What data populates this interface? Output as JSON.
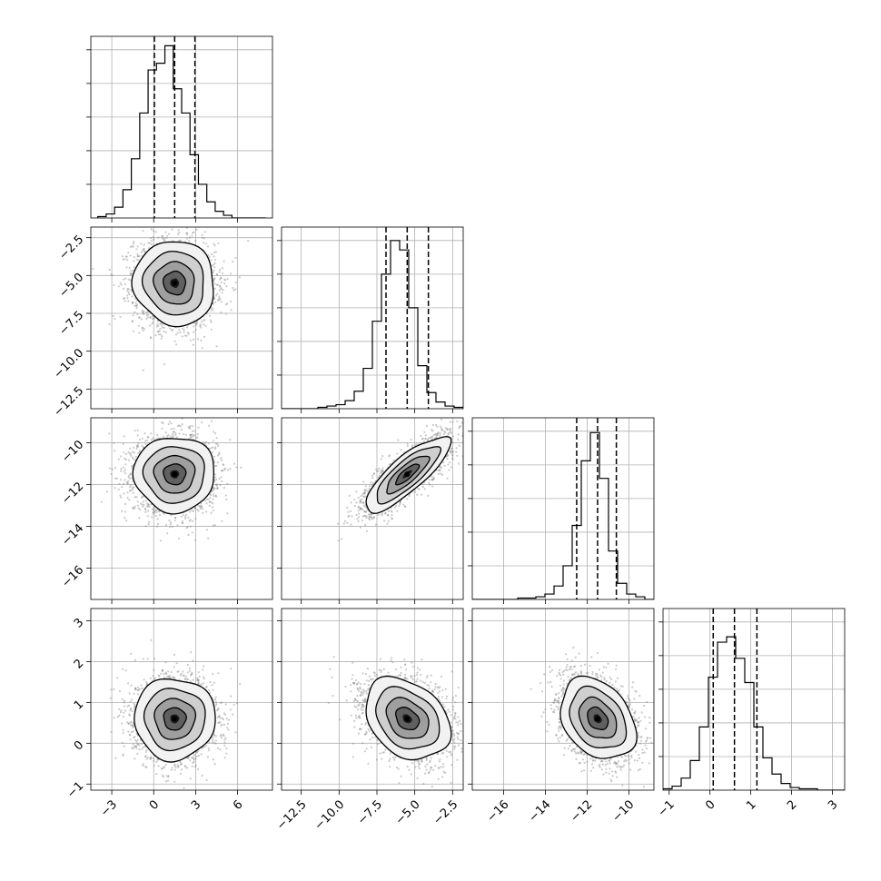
{
  "chart_data": {
    "type": "corner",
    "n_params": 4,
    "grid": true,
    "params": [
      {
        "range": [
          -4.5,
          8.5
        ],
        "ticks": [
          -3,
          0,
          3,
          6
        ],
        "tick_labels": [
          "−3",
          "0",
          "3",
          "6"
        ],
        "mean": 1.5,
        "sd": 1.45,
        "quantiles": [
          0.05,
          1.5,
          2.95
        ],
        "hist_edges_start": -4.0,
        "hist_bin": 0.6,
        "hist_counts": [
          1,
          3,
          8,
          21,
          44,
          78,
          110,
          115,
          128,
          96,
          78,
          47,
          25,
          12,
          5,
          2,
          0,
          0,
          0,
          0
        ]
      },
      {
        "range": [
          -13.8,
          -1.8
        ],
        "ticks": [
          -12.5,
          -10.0,
          -7.5,
          -5.0,
          -2.5
        ],
        "tick_labels": [
          "−12.5",
          "−10.0",
          "−7.5",
          "−5.0",
          "−2.5"
        ],
        "mean": -5.5,
        "sd": 1.4,
        "quantiles": [
          -6.9,
          -5.5,
          -4.1
        ],
        "hist_edges_start": -13.8,
        "hist_bin": 0.6,
        "hist_counts": [
          0,
          0,
          0,
          0,
          1,
          2,
          3,
          6,
          13,
          30,
          65,
          100,
          125,
          118,
          75,
          32,
          12,
          5,
          2,
          1
        ]
      },
      {
        "range": [
          -17.5,
          -8.8
        ],
        "ticks": [
          -16,
          -14,
          -12,
          -10
        ],
        "tick_labels": [
          "−16",
          "−14",
          "−12",
          "−10"
        ],
        "mean": -11.5,
        "sd": 0.9,
        "quantiles": [
          -12.5,
          -11.5,
          -10.6
        ],
        "hist_edges_start": -17.5,
        "hist_bin": 0.435,
        "hist_counts": [
          0,
          0,
          0,
          0,
          0,
          1,
          1,
          2,
          4,
          10,
          25,
          55,
          103,
          124,
          90,
          36,
          12,
          4,
          2,
          0
        ]
      },
      {
        "range": [
          -1.15,
          3.3
        ],
        "ticks": [
          -1,
          0,
          1,
          2,
          3
        ],
        "tick_labels": [
          "−1",
          "0",
          "1",
          "2",
          "3"
        ],
        "mean": 0.6,
        "sd": 0.5,
        "quantiles": [
          0.08,
          0.6,
          1.15
        ],
        "hist_edges_start": -1.15,
        "hist_bin": 0.2225,
        "hist_counts": [
          1,
          3,
          9,
          22,
          47,
          84,
          110,
          114,
          98,
          80,
          47,
          24,
          12,
          5,
          2,
          1,
          1,
          0,
          0,
          0
        ]
      }
    ],
    "hist_ymax": 135,
    "correlations": {
      "1-0": -0.05,
      "2-0": 0.0,
      "2-1": 0.82,
      "3-0": 0.0,
      "3-1": -0.3,
      "3-2": -0.3
    }
  }
}
